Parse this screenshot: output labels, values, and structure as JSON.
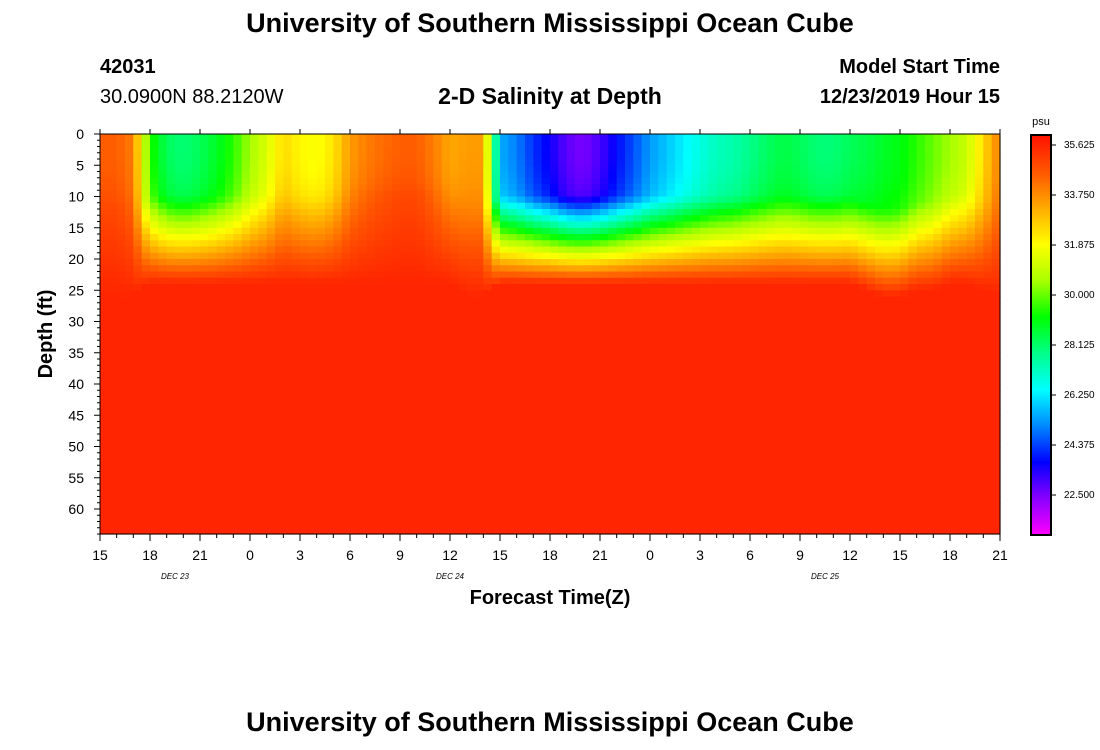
{
  "header": {
    "title": "University of Southern Mississippi Ocean Cube",
    "station_id": "42031",
    "station_coords": "30.0900N 88.2120W",
    "plot_title": "2-D Salinity at Depth",
    "start_label": "Model Start Time",
    "start_value": "12/23/2019 Hour 15"
  },
  "footer": {
    "title": "University of Southern Mississippi Ocean Cube"
  },
  "chart_data": {
    "type": "heatmap",
    "title": "2-D Salinity at Depth",
    "xlabel": "Forecast Time(Z)",
    "ylabel": "Depth (ft)",
    "x_tick_labels": [
      "15",
      "18",
      "21",
      "0",
      "3",
      "6",
      "9",
      "12",
      "15",
      "18",
      "21",
      "0",
      "3",
      "6",
      "9",
      "12",
      "15",
      "18",
      "21"
    ],
    "x_range_hours": [
      0,
      54
    ],
    "date_labels": [
      {
        "text": "DEC 23",
        "hour": 4.5
      },
      {
        "text": "DEC 24",
        "hour": 21
      },
      {
        "text": "DEC 25",
        "hour": 43.5
      }
    ],
    "y_tick_labels": [
      "0",
      "5",
      "10",
      "15",
      "20",
      "25",
      "30",
      "35",
      "40",
      "45",
      "50",
      "55",
      "60"
    ],
    "y_range_ft": [
      0,
      64
    ],
    "colorbar": {
      "unit": "psu",
      "tick_labels": [
        "35.625",
        "33.750",
        "31.875",
        "30.000",
        "28.125",
        "26.250",
        "24.375",
        "22.500"
      ],
      "range": [
        21,
        36
      ],
      "colors": [
        "#ff00ff",
        "#8a00ff",
        "#0000ff",
        "#0088ff",
        "#00ffff",
        "#00ff88",
        "#00ff00",
        "#aaff00",
        "#ffff00",
        "#ffaa00",
        "#ff5500",
        "#ff1100"
      ]
    },
    "surface_salinity_by_hour": [
      34.5,
      34.5,
      34.0,
      29.5,
      28.3,
      28.0,
      28.3,
      28.8,
      29.5,
      30.5,
      31.3,
      32.5,
      32.0,
      31.8,
      32.3,
      33.5,
      34.0,
      34.3,
      34.5,
      34.5,
      34.0,
      33.3,
      33.5,
      33.5,
      25.5,
      25.0,
      24.2,
      23.6,
      22.8,
      22.5,
      23.0,
      23.8,
      24.5,
      25.3,
      25.8,
      26.3,
      26.8,
      27.2,
      27.4,
      27.8,
      28.2,
      28.5,
      28.3,
      28.0,
      28.0,
      28.3,
      28.5,
      28.8,
      29.0,
      29.5,
      30.0,
      30.5,
      31.0,
      32.5,
      34.0
    ],
    "mixed_layer_depth_ft_by_hour": [
      12,
      12,
      12,
      10,
      10,
      10,
      10,
      10,
      10,
      10,
      10,
      10,
      10,
      10,
      10,
      10,
      10,
      10,
      10,
      10,
      10,
      10,
      12,
      12,
      10,
      10,
      10,
      10,
      10,
      10,
      10,
      10,
      10,
      10,
      10,
      10,
      10,
      10,
      10,
      10,
      10,
      10,
      10,
      10,
      10,
      10,
      11,
      12,
      12,
      11,
      11,
      10,
      10,
      11,
      12
    ],
    "deep_salinity": 35.6
  }
}
